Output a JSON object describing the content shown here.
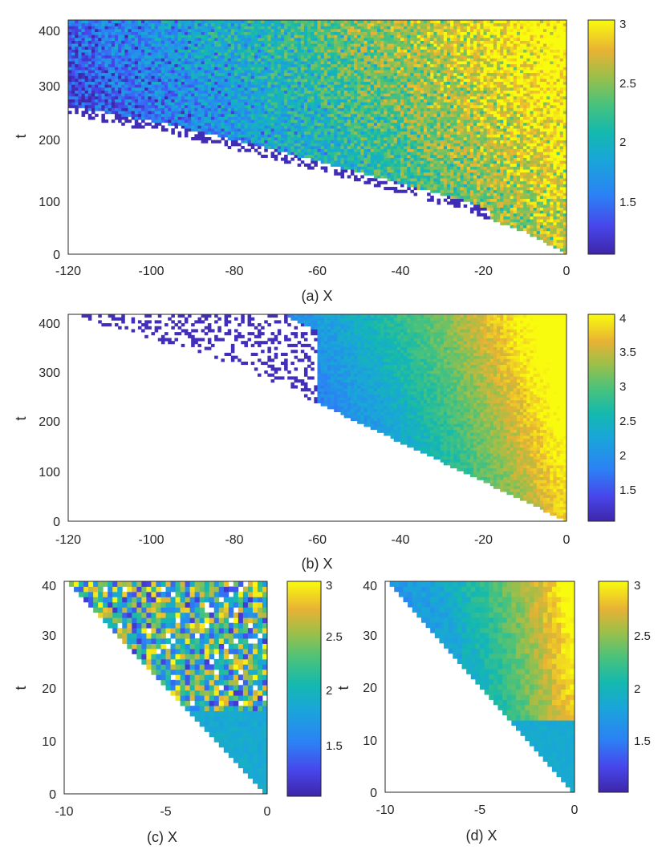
{
  "chart_data": [
    {
      "panel": "a",
      "type": "heatmap",
      "xlabel": "(a) X",
      "ylabel": "t",
      "xlim": [
        -120,
        0
      ],
      "ylim": [
        0,
        420
      ],
      "xticks": [
        "-120",
        "-100",
        "-80",
        "-60",
        "-40",
        "-20",
        "0"
      ],
      "yticks": [
        "0",
        "100",
        "200",
        "300",
        "400"
      ],
      "colorbar": {
        "min": 1.0,
        "max": 3.0,
        "ticks": [
          "1.5",
          "2",
          "2.5",
          "3"
        ]
      },
      "front": [
        [
          0,
          0
        ],
        [
          -10,
          40
        ],
        [
          -25,
          80
        ],
        [
          -45,
          120
        ],
        [
          -70,
          170
        ],
        [
          -95,
          215
        ],
        [
          -120,
          250
        ]
      ]
    },
    {
      "panel": "b",
      "type": "heatmap",
      "xlabel": "(b) X",
      "ylabel": "t",
      "xlim": [
        -120,
        0
      ],
      "ylim": [
        0,
        420
      ],
      "xticks": [
        "-120",
        "-100",
        "-80",
        "-60",
        "-40",
        "-20",
        "0"
      ],
      "yticks": [
        "0",
        "100",
        "200",
        "300",
        "400"
      ],
      "colorbar": {
        "min": 1.0,
        "max": 4.0,
        "ticks": [
          "1.5",
          "2",
          "2.5",
          "3",
          "3.5",
          "4"
        ]
      },
      "front": [
        [
          0,
          0
        ],
        [
          -20,
          80
        ],
        [
          -40,
          160
        ],
        [
          -60,
          240
        ],
        [
          -80,
          320
        ],
        [
          -120,
          420
        ]
      ]
    },
    {
      "panel": "c",
      "type": "heatmap",
      "xlabel": "(c) X",
      "ylabel": "t",
      "xlim": [
        -10,
        0
      ],
      "ylim": [
        0,
        40
      ],
      "xticks": [
        "-10",
        "-5",
        "0"
      ],
      "yticks": [
        "0",
        "10",
        "20",
        "30",
        "40"
      ],
      "colorbar": {
        "min": 1.0,
        "max": 3.0,
        "ticks": [
          "1.5",
          "2",
          "2.5",
          "3"
        ]
      },
      "front": [
        [
          0,
          0
        ],
        [
          -10,
          40
        ]
      ]
    },
    {
      "panel": "d",
      "type": "heatmap",
      "xlabel": "(d) X",
      "ylabel": "t",
      "xlim": [
        -10,
        0
      ],
      "ylim": [
        0,
        40
      ],
      "xticks": [
        "-10",
        "-5",
        "0"
      ],
      "yticks": [
        "0",
        "10",
        "20",
        "30",
        "40"
      ],
      "colorbar": {
        "min": 1.0,
        "max": 3.0,
        "ticks": [
          "1.5",
          "2",
          "2.5",
          "3"
        ]
      },
      "front": [
        [
          0,
          0
        ],
        [
          -10,
          40
        ]
      ]
    }
  ]
}
